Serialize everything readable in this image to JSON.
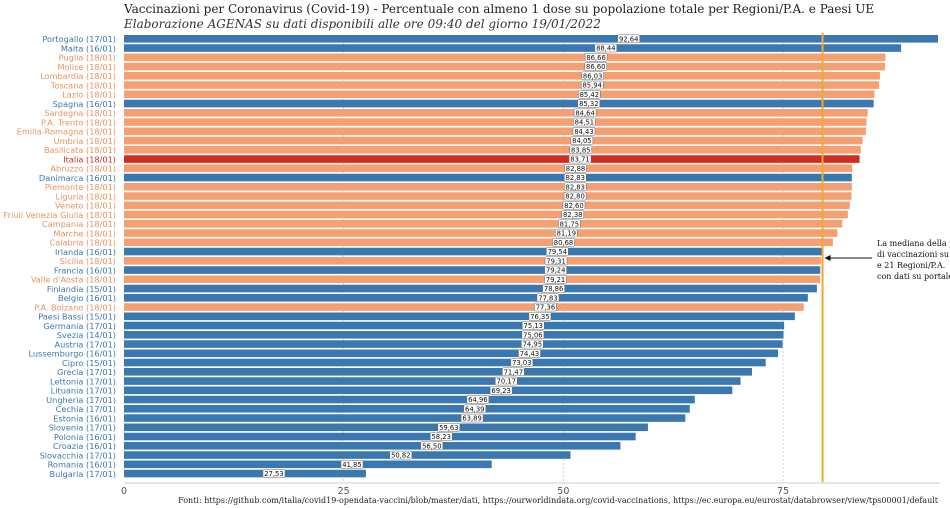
{
  "title": "Vaccinazioni per Coronavirus (Covid-19) - Percentuale con almeno 1 dose su popolazione totale per Regioni/P.A. e Paesi UE",
  "subtitle": "Elaborazione AGENAS su dati disponibili alle ore 09:40  del giorno  19/01/2022",
  "source": "Fonti: https://github.com/italia/covid19-opendata-vaccini/blob/master/dati, https://ourworldindata.org/covid-vaccinations, https://ec.europa.eu/eurostat/databrowser/view/tps00001/default",
  "annotation": [
    "La mediana della pe",
    "di vaccinazioni su p",
    "e 21 Regioni/P.A.",
    "con dati su portale d"
  ],
  "colors": {
    "eu": "#3b78b0",
    "region": "#f4a072",
    "italia": "#d52a20",
    "median": "#f0a830",
    "eu_label": "#3b78b0",
    "region_label": "#e8935e",
    "italia_label": "#d52a20"
  },
  "chart_data": {
    "type": "bar",
    "orientation": "horizontal",
    "xlim": [
      0,
      93
    ],
    "xticks": [
      0,
      25,
      50,
      75
    ],
    "median": 79.5,
    "categories": [
      "Portogallo (17/01)",
      "Malta (16/01)",
      "Puglia (18/01)",
      "Molise (18/01)",
      "Lombardia (18/01)",
      "Toscana (18/01)",
      "Lazio (18/01)",
      "Spagna (16/01)",
      "Sardegna (18/01)",
      "P.A. Trento (18/01)",
      "Emilia-Romagna (18/01)",
      "Umbria (18/01)",
      "Basilicata (18/01)",
      "Italia (18/01)",
      "Abruzzo (18/01)",
      "Danimarca (16/01)",
      "Piemonte (18/01)",
      "Liguria (18/01)",
      "Veneto (18/01)",
      "Friuli Venezia Giulia (18/01)",
      "Campania (18/01)",
      "Marche (18/01)",
      "Calabria (18/01)",
      "Irlanda (16/01)",
      "Sicilia (18/01)",
      "Francia (16/01)",
      "Valle d'Aosta (18/01)",
      "Finlandia (15/01)",
      "Belgio (16/01)",
      "P.A. Bolzano (18/01)",
      "Paesi Bassi (15/01)",
      "Germania (17/01)",
      "Svezia (14/01)",
      "Austria (17/01)",
      "Lussemburgo (16/01)",
      "Cipro (15/01)",
      "Grecia (17/01)",
      "Lettonia (17/01)",
      "Lituania (17/01)",
      "Ungheria (17/01)",
      "Cechia (17/01)",
      "Estonia (16/01)",
      "Slovenia (17/01)",
      "Polonia (16/01)",
      "Croazia (16/01)",
      "Slovacchia (17/01)",
      "Romania (16/01)",
      "Bulgaria (17/01)"
    ],
    "values": [
      92.64,
      88.44,
      86.66,
      86.6,
      86.03,
      85.94,
      85.42,
      85.32,
      84.64,
      84.51,
      84.43,
      84.05,
      83.85,
      83.71,
      82.88,
      82.83,
      82.83,
      82.8,
      82.6,
      82.38,
      81.75,
      81.19,
      80.68,
      79.54,
      79.31,
      79.24,
      79.21,
      78.86,
      77.83,
      77.36,
      76.35,
      75.13,
      75.06,
      74.95,
      74.43,
      73.03,
      71.47,
      70.17,
      69.23,
      64.96,
      64.39,
      63.89,
      59.63,
      58.23,
      56.5,
      50.82,
      41.85,
      27.53
    ],
    "value_labels": [
      "92,64",
      "88,44",
      "86,66",
      "86,60",
      "86,03",
      "85,94",
      "85,42",
      "85,32",
      "84,64",
      "84,51",
      "84,43",
      "84,05",
      "83,85",
      "83,71",
      "82,88",
      "82,83",
      "82,83",
      "82,80",
      "82,60",
      "82,38",
      "81,75",
      "81,19",
      "80,68",
      "79,54",
      "79,31",
      "79,24",
      "79,21",
      "78,86",
      "77,83",
      "77,36",
      "76,35",
      "75,13",
      "75,06",
      "74,95",
      "74,43",
      "73,03",
      "71,47",
      "70,17",
      "69,23",
      "64,96",
      "64,39",
      "63,89",
      "59,63",
      "58,23",
      "56,50",
      "50,82",
      "41,85",
      "27,53"
    ],
    "kinds": [
      "eu",
      "eu",
      "region",
      "region",
      "region",
      "region",
      "region",
      "eu",
      "region",
      "region",
      "region",
      "region",
      "region",
      "italia",
      "region",
      "eu",
      "region",
      "region",
      "region",
      "region",
      "region",
      "region",
      "region",
      "eu",
      "region",
      "eu",
      "region",
      "eu",
      "eu",
      "region",
      "eu",
      "eu",
      "eu",
      "eu",
      "eu",
      "eu",
      "eu",
      "eu",
      "eu",
      "eu",
      "eu",
      "eu",
      "eu",
      "eu",
      "eu",
      "eu",
      "eu",
      "eu"
    ]
  }
}
